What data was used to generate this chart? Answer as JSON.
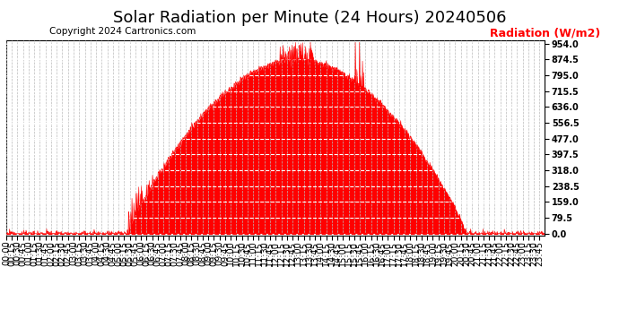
{
  "title": "Solar Radiation per Minute (24 Hours) 20240506",
  "copyright_text": "Copyright 2024 Cartronics.com",
  "ylabel_right": "Radiation (W/m2)",
  "fill_color": "#FF0000",
  "line_color": "#CC0000",
  "background_color": "#FFFFFF",
  "grid_color_h": "#FFFFFF",
  "grid_color_v": "#BBBBBB",
  "yticks": [
    0.0,
    79.5,
    159.0,
    238.5,
    318.0,
    397.5,
    477.0,
    556.5,
    636.0,
    715.5,
    795.0,
    874.5,
    954.0
  ],
  "ymax": 970,
  "ymin": -8,
  "title_fontsize": 13,
  "tick_fontsize": 7,
  "annotation_fontsize": 7.5,
  "ylabel_fontsize": 9,
  "rise_minute": 325,
  "peak_minute": 775,
  "set_minute": 1230,
  "peak_value": 870,
  "seed": 12
}
